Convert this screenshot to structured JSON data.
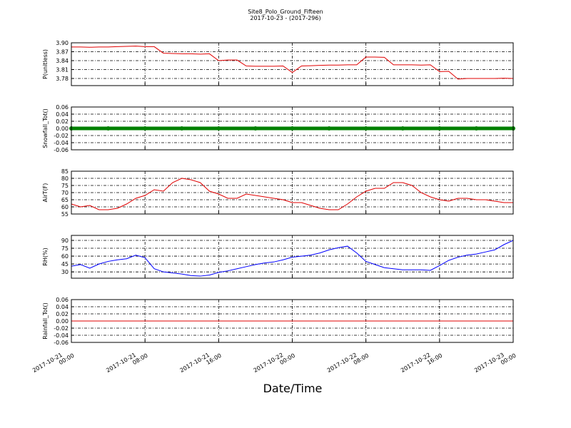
{
  "chart_data": [
    {
      "type": "line",
      "title": "Site8_Polo_Ground_Fifteen",
      "subtitle": "2017-10-23 - (2017-296)",
      "ylabel": "P(unitless)",
      "color": "#e00000",
      "grid": true,
      "x": [
        "2017-10-21 00:00",
        "2017-10-21 01:00",
        "2017-10-21 02:00",
        "2017-10-21 03:00",
        "2017-10-21 04:00",
        "2017-10-21 05:00",
        "2017-10-21 06:00",
        "2017-10-21 07:00",
        "2017-10-21 08:00",
        "2017-10-21 09:00",
        "2017-10-21 10:00",
        "2017-10-21 11:00",
        "2017-10-21 12:00",
        "2017-10-21 13:00",
        "2017-10-21 14:00",
        "2017-10-21 15:00",
        "2017-10-21 16:00",
        "2017-10-21 17:00",
        "2017-10-21 18:00",
        "2017-10-21 19:00",
        "2017-10-21 20:00",
        "2017-10-21 21:00",
        "2017-10-21 22:00",
        "2017-10-21 23:00",
        "2017-10-22 00:00",
        "2017-10-22 01:00",
        "2017-10-22 02:00",
        "2017-10-22 03:00",
        "2017-10-22 04:00",
        "2017-10-22 05:00",
        "2017-10-22 06:00",
        "2017-10-22 07:00",
        "2017-10-22 08:00",
        "2017-10-22 09:00",
        "2017-10-22 10:00",
        "2017-10-22 11:00",
        "2017-10-22 12:00",
        "2017-10-22 13:00",
        "2017-10-22 14:00",
        "2017-10-22 15:00",
        "2017-10-22 16:00",
        "2017-10-22 17:00",
        "2017-10-22 18:00",
        "2017-10-22 19:00",
        "2017-10-22 20:00",
        "2017-10-22 21:00",
        "2017-10-22 22:00",
        "2017-10-22 23:00",
        "2017-10-23 00:00"
      ],
      "values": [
        3.886,
        3.886,
        3.885,
        3.886,
        3.886,
        3.887,
        3.888,
        3.889,
        3.887,
        3.887,
        3.865,
        3.864,
        3.863,
        3.863,
        3.862,
        3.863,
        3.84,
        3.842,
        3.842,
        3.822,
        3.821,
        3.821,
        3.821,
        3.822,
        3.8,
        3.822,
        3.823,
        3.824,
        3.825,
        3.825,
        3.826,
        3.826,
        3.852,
        3.852,
        3.851,
        3.826,
        3.826,
        3.826,
        3.825,
        3.826,
        3.803,
        3.804,
        3.778,
        3.78,
        3.78,
        3.78,
        3.78,
        3.781,
        3.78
      ],
      "xlim": [
        "2017-10-21 00:00",
        "2017-10-23 00:00"
      ],
      "xticks": [
        "2017-10-21 00:00",
        "2017-10-21 08:00",
        "2017-10-21 16:00",
        "2017-10-22 00:00",
        "2017-10-22 08:00",
        "2017-10-22 16:00",
        "2017-10-23 00:00"
      ],
      "ylim": [
        3.756,
        3.9
      ],
      "yticks": [
        3.78,
        3.81,
        3.84,
        3.87,
        {
          "value": 3.9,
          "label": "3.90"
        }
      ]
    },
    {
      "type": "line",
      "ylabel": "Snowfall_Tot()",
      "color": "green",
      "marker": "o",
      "grid": true,
      "x": [
        "2017-10-21 00:00",
        "2017-10-21 04:00",
        "2017-10-21 08:00",
        "2017-10-21 12:00",
        "2017-10-21 16:00",
        "2017-10-21 20:00",
        "2017-10-22 00:00",
        "2017-10-22 04:00",
        "2017-10-22 08:00",
        "2017-10-22 12:00",
        "2017-10-22 16:00",
        "2017-10-22 20:00",
        "2017-10-23 00:00"
      ],
      "values": [
        0,
        0,
        0,
        0,
        0,
        0,
        0,
        0,
        0,
        0,
        0,
        0,
        0
      ],
      "xlim": [
        "2017-10-21 00:00",
        "2017-10-23 00:00"
      ],
      "xticks": [
        "2017-10-21 00:00",
        "2017-10-21 08:00",
        "2017-10-21 16:00",
        "2017-10-22 00:00",
        "2017-10-22 08:00",
        "2017-10-22 16:00",
        "2017-10-23 00:00"
      ],
      "ylim": [
        -0.06,
        0.06
      ],
      "yticks": [
        -0.06,
        -0.04,
        -0.02,
        {
          "value": 0,
          "label": "0.00"
        },
        0.02,
        0.04,
        0.06
      ]
    },
    {
      "type": "line",
      "ylabel": "AirT(F)",
      "color": "#e00000",
      "grid": true,
      "x": [
        "2017-10-21 00:00",
        "2017-10-21 01:00",
        "2017-10-21 02:00",
        "2017-10-21 03:00",
        "2017-10-21 04:00",
        "2017-10-21 05:00",
        "2017-10-21 06:00",
        "2017-10-21 07:00",
        "2017-10-21 08:00",
        "2017-10-21 09:00",
        "2017-10-21 10:00",
        "2017-10-21 11:00",
        "2017-10-21 12:00",
        "2017-10-21 13:00",
        "2017-10-21 14:00",
        "2017-10-21 15:00",
        "2017-10-21 16:00",
        "2017-10-21 17:00",
        "2017-10-21 18:00",
        "2017-10-21 19:00",
        "2017-10-21 20:00",
        "2017-10-21 21:00",
        "2017-10-21 22:00",
        "2017-10-21 23:00",
        "2017-10-22 00:00",
        "2017-10-22 01:00",
        "2017-10-22 02:00",
        "2017-10-22 03:00",
        "2017-10-22 04:00",
        "2017-10-22 05:00",
        "2017-10-22 06:00",
        "2017-10-22 07:00",
        "2017-10-22 08:00",
        "2017-10-22 09:00",
        "2017-10-22 10:00",
        "2017-10-22 11:00",
        "2017-10-22 12:00",
        "2017-10-22 13:00",
        "2017-10-22 14:00",
        "2017-10-22 15:00",
        "2017-10-22 16:00",
        "2017-10-22 17:00",
        "2017-10-22 18:00",
        "2017-10-22 19:00",
        "2017-10-22 20:00",
        "2017-10-22 21:00",
        "2017-10-22 22:00",
        "2017-10-22 23:00",
        "2017-10-23 00:00"
      ],
      "values": [
        62,
        60,
        61,
        58,
        58,
        59,
        62,
        66,
        68,
        72,
        71,
        77,
        80,
        79,
        77,
        71,
        69,
        66,
        66,
        69,
        68,
        67,
        66,
        65,
        63,
        63,
        61,
        59,
        58,
        58,
        62,
        67,
        71,
        73,
        73,
        77,
        77,
        75,
        70,
        67,
        65,
        64,
        66,
        66,
        65,
        65,
        64,
        63,
        63
      ],
      "xlim": [
        "2017-10-21 00:00",
        "2017-10-23 00:00"
      ],
      "xticks": [
        "2017-10-21 00:00",
        "2017-10-21 08:00",
        "2017-10-21 16:00",
        "2017-10-22 00:00",
        "2017-10-22 08:00",
        "2017-10-22 16:00",
        "2017-10-23 00:00"
      ],
      "ylim": [
        55,
        85
      ],
      "yticks": [
        55,
        60,
        65,
        70,
        75,
        80,
        85
      ]
    },
    {
      "type": "line",
      "ylabel": "RH(%)",
      "color": "blue",
      "grid": true,
      "x": [
        "2017-10-21 00:00",
        "2017-10-21 01:00",
        "2017-10-21 02:00",
        "2017-10-21 03:00",
        "2017-10-21 04:00",
        "2017-10-21 05:00",
        "2017-10-21 06:00",
        "2017-10-21 07:00",
        "2017-10-21 08:00",
        "2017-10-21 09:00",
        "2017-10-21 10:00",
        "2017-10-21 11:00",
        "2017-10-21 12:00",
        "2017-10-21 13:00",
        "2017-10-21 14:00",
        "2017-10-21 15:00",
        "2017-10-21 16:00",
        "2017-10-21 17:00",
        "2017-10-21 18:00",
        "2017-10-21 19:00",
        "2017-10-21 20:00",
        "2017-10-21 21:00",
        "2017-10-21 22:00",
        "2017-10-21 23:00",
        "2017-10-22 00:00",
        "2017-10-22 01:00",
        "2017-10-22 02:00",
        "2017-10-22 03:00",
        "2017-10-22 04:00",
        "2017-10-22 05:00",
        "2017-10-22 06:00",
        "2017-10-22 07:00",
        "2017-10-22 08:00",
        "2017-10-22 09:00",
        "2017-10-22 10:00",
        "2017-10-22 11:00",
        "2017-10-22 12:00",
        "2017-10-22 13:00",
        "2017-10-22 14:00",
        "2017-10-22 15:00",
        "2017-10-22 16:00",
        "2017-10-22 17:00",
        "2017-10-22 18:00",
        "2017-10-22 19:00",
        "2017-10-22 20:00",
        "2017-10-22 21:00",
        "2017-10-22 22:00",
        "2017-10-22 23:00",
        "2017-10-23 00:00"
      ],
      "values": [
        41,
        44,
        37,
        45,
        50,
        53,
        55,
        62,
        57,
        36,
        30,
        28,
        26,
        23,
        22,
        24,
        29,
        32,
        36,
        40,
        44,
        47,
        49,
        53,
        58,
        60,
        62,
        66,
        72,
        76,
        79,
        66,
        50,
        44,
        38,
        36,
        34,
        34,
        34,
        33,
        42,
        52,
        58,
        62,
        64,
        68,
        72,
        82,
        90
      ],
      "xlim": [
        "2017-10-21 00:00",
        "2017-10-23 00:00"
      ],
      "xticks": [
        "2017-10-21 00:00",
        "2017-10-21 08:00",
        "2017-10-21 16:00",
        "2017-10-22 00:00",
        "2017-10-22 08:00",
        "2017-10-22 16:00",
        "2017-10-23 00:00"
      ],
      "ylim": [
        18,
        99.5
      ],
      "yticks": [
        30,
        45,
        60,
        75,
        90
      ]
    },
    {
      "type": "line",
      "ylabel": "Rainfall_Tot()",
      "xlabel": "Date/Time",
      "color": "#e00000",
      "grid": true,
      "x": [
        "2017-10-21 00:00",
        "2017-10-21 04:00",
        "2017-10-21 08:00",
        "2017-10-21 12:00",
        "2017-10-21 16:00",
        "2017-10-21 20:00",
        "2017-10-22 00:00",
        "2017-10-22 04:00",
        "2017-10-22 08:00",
        "2017-10-22 12:00",
        "2017-10-22 16:00",
        "2017-10-22 20:00",
        "2017-10-23 00:00"
      ],
      "values": [
        0,
        0,
        0,
        0,
        0,
        0,
        0,
        0,
        0,
        0,
        0,
        0,
        0
      ],
      "xlim": [
        "2017-10-21 00:00",
        "2017-10-23 00:00"
      ],
      "xticks": [
        "2017-10-21 00:00",
        "2017-10-21 08:00",
        "2017-10-21 16:00",
        "2017-10-22 00:00",
        "2017-10-22 08:00",
        "2017-10-22 16:00",
        "2017-10-23 00:00"
      ],
      "ylim": [
        -0.06,
        0.06
      ],
      "yticks": [
        -0.06,
        -0.04,
        -0.02,
        {
          "value": 0,
          "label": "0.00"
        },
        0.02,
        0.04,
        0.06
      ]
    }
  ]
}
